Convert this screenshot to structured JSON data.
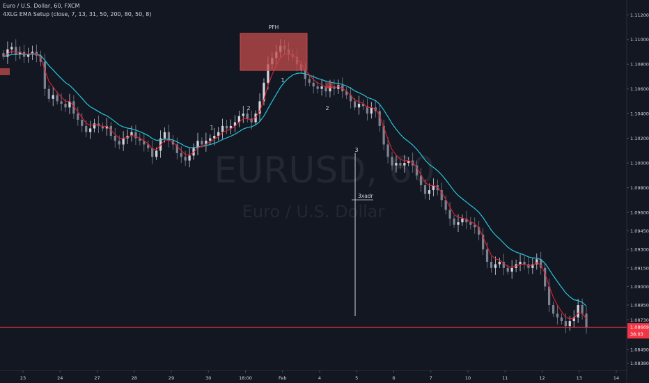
{
  "header": {
    "symbol_line": "Euro / U.S. Dollar, 60, FXCM",
    "indicator_line": "4XLG EMA Setup (close, 7, 13, 31, 50, 200, 80, 50, 8)"
  },
  "watermark": {
    "ticker": "EURUSD, 60",
    "name": "Euro / U.S. Dollar"
  },
  "colors": {
    "background": "#131722",
    "up": "#d1d4dc",
    "down": "#7d8190",
    "ema_fast": "#e0202f",
    "ema_slow": "#26c6da",
    "price_line": "#f23645",
    "pfh_box": "#c44c4c",
    "axis_text": "#d1d4dc"
  },
  "chart_data": {
    "type": "candlestick",
    "title": "Euro / U.S. Dollar, 60, FXCM",
    "x_tick_labels": [
      "23",
      "24",
      "27",
      "28",
      "29",
      "30",
      "18:00",
      "Feb",
      "4",
      "5",
      "6",
      "7",
      "10",
      "11",
      "12",
      "13",
      "14"
    ],
    "y_tick_labels": [
      "1.11200",
      "1.11000",
      "1.10800",
      "1.10600",
      "1.10400",
      "1.10200",
      "1.10000",
      "1.09800",
      "1.09600",
      "1.09450",
      "1.09300",
      "1.09150",
      "1.09000",
      "1.08850",
      "1.08730",
      "1.08490",
      "1.08380"
    ],
    "ylim": [
      1.0832,
      1.1132
    ],
    "last_price": {
      "value": "1.08669",
      "countdown": "38:03"
    },
    "closes": [
      1.1086,
      1.1092,
      1.1094,
      1.1088,
      1.109,
      1.1086,
      1.1088,
      1.109,
      1.1087,
      1.1082,
      1.106,
      1.1052,
      1.1055,
      1.105,
      1.1048,
      1.1045,
      1.105,
      1.104,
      1.1035,
      1.103,
      1.1025,
      1.1028,
      1.1032,
      1.103,
      1.1028,
      1.103,
      1.1022,
      1.1018,
      1.1015,
      1.102,
      1.1022,
      1.1025,
      1.102,
      1.1018,
      1.1015,
      1.1012,
      1.1005,
      1.101,
      1.102,
      1.1025,
      1.1018,
      1.1015,
      1.1008,
      1.1005,
      1.1002,
      1.1006,
      1.1012,
      1.1018,
      1.1015,
      1.1018,
      1.102,
      1.1022,
      1.1025,
      1.103,
      1.1028,
      1.103,
      1.1033,
      1.1038,
      1.104,
      1.1036,
      1.1033,
      1.104,
      1.105,
      1.1065,
      1.108,
      1.1085,
      1.109,
      1.1095,
      1.1092,
      1.1088,
      1.1086,
      1.108,
      1.1075,
      1.1068,
      1.1065,
      1.1062,
      1.106,
      1.1062,
      1.1058,
      1.1062,
      1.106,
      1.1063,
      1.1058,
      1.1055,
      1.105,
      1.1045,
      1.1048,
      1.1046,
      1.104,
      1.1045,
      1.1042,
      1.103,
      1.1015,
      1.1005,
      1.0998,
      1.1,
      1.0998,
      1.1,
      1.1002,
      1.0998,
      1.099,
      1.0982,
      1.0975,
      1.0978,
      1.0982,
      1.0978,
      1.097,
      1.0962,
      1.0955,
      1.095,
      1.0952,
      1.0955,
      1.0952,
      1.095,
      1.0948,
      1.0942,
      1.093,
      1.092,
      1.0915,
      1.0918,
      1.092,
      1.0915,
      1.0912,
      1.0915,
      1.0918,
      1.092,
      1.0918,
      1.0915,
      1.0918,
      1.0922,
      1.0915,
      1.09,
      1.0885,
      1.0878,
      1.0875,
      1.0872,
      1.0868,
      1.0872,
      1.0875,
      1.0885,
      1.0878,
      1.0867
    ],
    "series": [
      {
        "name": "",
        "role": "fast EMA",
        "color": "#e0202f"
      },
      {
        "name": "",
        "role": "slow EMA",
        "color": "#26c6da"
      }
    ],
    "annotations": {
      "box_label": "PFH",
      "box_range": [
        1.1075,
        1.1105
      ],
      "wave_labels": [
        "1",
        "2",
        "1",
        "2",
        "3"
      ],
      "vertical_line_label": "3xadr",
      "vertical_line_range": [
        1.0876,
        1.1008
      ]
    },
    "grid": false,
    "legend": "none"
  }
}
